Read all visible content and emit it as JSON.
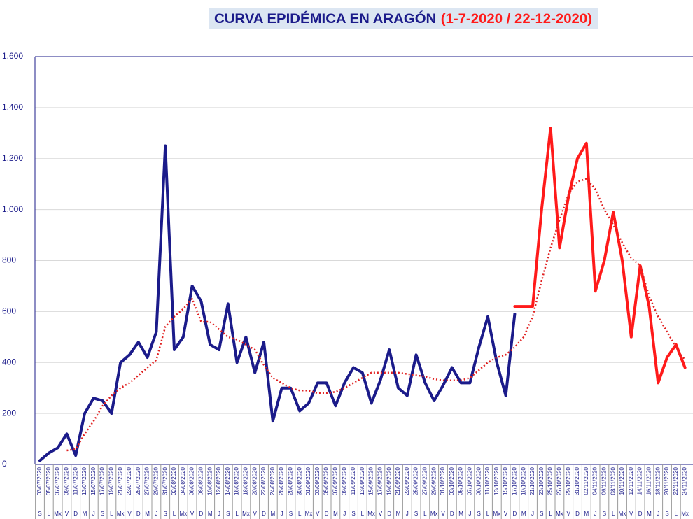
{
  "chart_data": {
    "type": "line",
    "title": "CURVA EPIDÉMICA EN ARAGÓN",
    "subtitle": "(1-7-2020  / 22-12-2020)",
    "categories": [
      "03/07/2020",
      "05/07/2020",
      "07/07/2020",
      "09/07/2020",
      "11/07/2020",
      "13/07/2020",
      "15/07/2020",
      "17/07/2020",
      "19/07/2020",
      "21/07/2020",
      "23/07/2020",
      "25/07/2020",
      "27/07/2020",
      "29/07/2020",
      "31/07/2020",
      "02/08/2020",
      "04/08/2020",
      "06/08/2020",
      "08/08/2020",
      "10/08/2020",
      "12/08/2020",
      "14/08/2020",
      "16/08/2020",
      "18/08/2020",
      "20/08/2020",
      "22/08/2020",
      "24/08/2020",
      "26/08/2020",
      "28/08/2020",
      "30/08/2020",
      "01/09/2020",
      "03/09/2020",
      "05/09/2020",
      "07/09/2020",
      "09/09/2020",
      "11/09/2020",
      "13/09/2020",
      "15/09/2020",
      "17/09/2020",
      "19/09/2020",
      "21/09/2020",
      "23/09/2020",
      "25/09/2020",
      "27/09/2020",
      "29/09/2020",
      "01/10/2020",
      "03/10/2020",
      "05/10/2020",
      "07/10/2020",
      "09/10/2020",
      "11/10/2020",
      "13/10/2020",
      "15/10/2020",
      "17/10/2020",
      "19/10/2020",
      "21/10/2020",
      "23/10/2020",
      "25/10/2020",
      "27/10/2020",
      "29/10/2020",
      "31/10/2020",
      "02/11/2020",
      "04/11/2020",
      "06/11/2020",
      "08/11/2020",
      "10/11/2020",
      "12/11/2020",
      "14/11/2020",
      "16/11/2020",
      "18/11/2020",
      "20/11/2020",
      "22/11/2020",
      "24/11/2020"
    ],
    "weekdays": [
      "S",
      "L",
      "Mx",
      "V",
      "D",
      "M",
      "J",
      "S",
      "L",
      "Mx",
      "V",
      "D",
      "M",
      "J",
      "S",
      "L",
      "Mx",
      "V",
      "D",
      "M",
      "J",
      "S",
      "L",
      "Mx",
      "V",
      "D",
      "M",
      "J",
      "S",
      "L",
      "Mx",
      "V",
      "D",
      "M",
      "J",
      "S",
      "L",
      "Mx",
      "V",
      "D",
      "M",
      "J",
      "S",
      "L",
      "Mx",
      "V",
      "D",
      "M",
      "J",
      "S",
      "L",
      "Mx",
      "V",
      "D",
      "M",
      "J",
      "S",
      "L",
      "Mx",
      "V",
      "D",
      "M",
      "J",
      "S",
      "L",
      "Mx",
      "V",
      "D",
      "M",
      "J",
      "S",
      "L",
      "Mx"
    ],
    "series": [
      {
        "color": "#1b1b8a",
        "style": "solid",
        "values": [
          15,
          45,
          65,
          120,
          35,
          200,
          260,
          250,
          200,
          400,
          430,
          480,
          420,
          520,
          1250,
          450,
          500,
          700,
          640,
          470,
          450,
          630,
          400,
          500,
          360,
          480,
          170,
          300,
          300,
          210,
          240,
          320,
          320,
          230,
          320,
          380,
          360,
          240,
          330,
          450,
          300,
          270,
          430,
          320,
          250,
          310,
          380,
          320,
          320,
          460,
          580,
          400,
          270,
          590,
          null,
          null,
          null,
          null,
          null,
          null,
          null,
          null,
          null,
          null,
          null,
          null,
          null,
          null,
          null,
          null,
          null,
          null,
          null
        ]
      },
      {
        "color": "#ff1a1a",
        "style": "solid",
        "values": [
          null,
          null,
          null,
          null,
          null,
          null,
          null,
          null,
          null,
          null,
          null,
          null,
          null,
          null,
          null,
          null,
          null,
          null,
          null,
          null,
          null,
          null,
          null,
          null,
          null,
          null,
          null,
          null,
          null,
          null,
          null,
          null,
          null,
          null,
          null,
          null,
          null,
          null,
          null,
          null,
          null,
          null,
          null,
          null,
          null,
          null,
          null,
          null,
          null,
          null,
          null,
          null,
          null,
          620,
          620,
          620,
          1000,
          1320,
          850,
          1050,
          1200,
          1260,
          680,
          800,
          990,
          800,
          500,
          780,
          620,
          320,
          420,
          470,
          380
        ]
      },
      {
        "color": "#e02020",
        "style": "dotted",
        "values": [
          null,
          null,
          null,
          55,
          60,
          120,
          170,
          230,
          270,
          300,
          320,
          350,
          380,
          410,
          540,
          580,
          610,
          650,
          560,
          560,
          530,
          500,
          490,
          470,
          450,
          390,
          340,
          320,
          300,
          290,
          290,
          280,
          280,
          285,
          300,
          320,
          340,
          360,
          360,
          360,
          360,
          355,
          350,
          345,
          335,
          330,
          330,
          330,
          340,
          370,
          400,
          420,
          430,
          460,
          500,
          580,
          720,
          850,
          960,
          1060,
          1110,
          1120,
          1080,
          1000,
          940,
          870,
          810,
          780,
          660,
          580,
          520,
          460,
          410
        ]
      }
    ],
    "ylim": [
      0,
      1600
    ],
    "yticks": [
      0,
      200,
      400,
      600,
      800,
      {
        "value": 1000,
        "label": "1.000"
      },
      {
        "value": 1200,
        "label": "1.200"
      },
      {
        "value": 1400,
        "label": "1.400"
      },
      {
        "value": 1600,
        "label": "1.600"
      }
    ],
    "grid": true
  }
}
